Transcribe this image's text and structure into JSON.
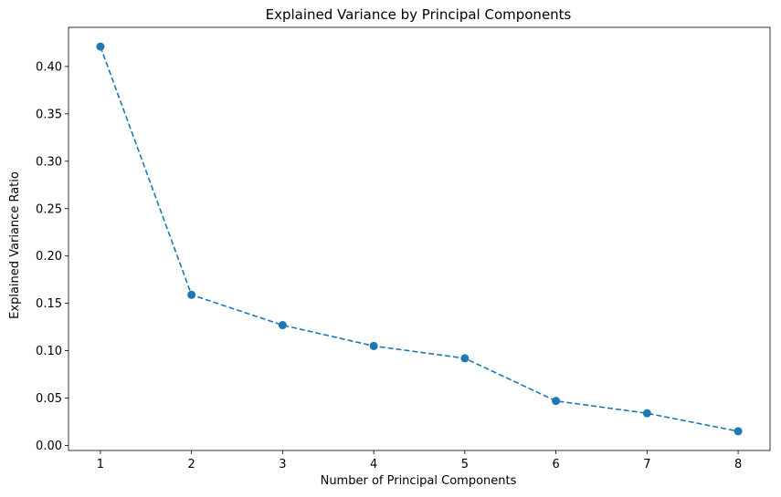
{
  "chart_data": {
    "type": "line",
    "title": "Explained Variance by Principal Components",
    "xlabel": "Number of Principal Components",
    "ylabel": "Explained Variance Ratio",
    "x": [
      1,
      2,
      3,
      4,
      5,
      6,
      7,
      8
    ],
    "series": [
      {
        "values": [
          0.421,
          0.159,
          0.127,
          0.105,
          0.092,
          0.047,
          0.034,
          0.015
        ],
        "color": "#1f77b4",
        "line_style": "dashed",
        "marker": "circle"
      }
    ],
    "xticks": [
      "1",
      "2",
      "3",
      "4",
      "5",
      "6",
      "7",
      "8"
    ],
    "yticks": [
      "0.00",
      "0.05",
      "0.10",
      "0.15",
      "0.20",
      "0.25",
      "0.30",
      "0.35",
      "0.40"
    ],
    "xlim": [
      0.65,
      8.35
    ],
    "ylim": [
      -0.0053,
      0.4413
    ],
    "grid": false,
    "legend": "none"
  }
}
